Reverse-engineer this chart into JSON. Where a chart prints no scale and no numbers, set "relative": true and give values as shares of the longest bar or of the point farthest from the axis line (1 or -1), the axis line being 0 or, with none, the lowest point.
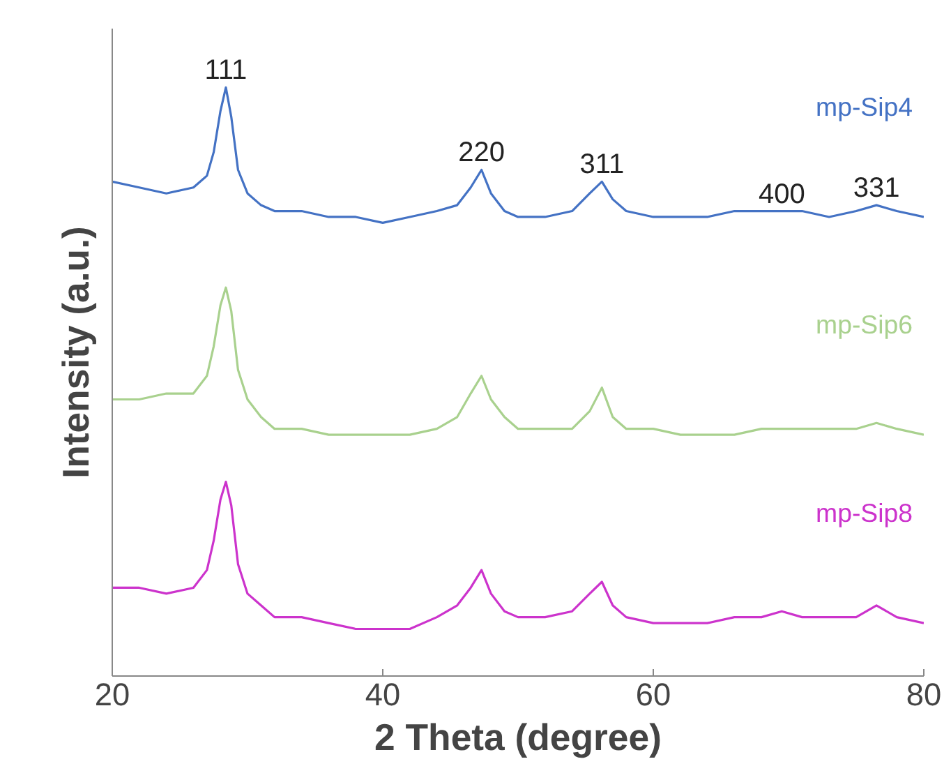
{
  "chart_data": {
    "type": "line",
    "relative": true,
    "xlabel": "2 Theta (degree)",
    "ylabel": "Intensity (a.u.)",
    "x": [
      20,
      22,
      24,
      26,
      27,
      27.5,
      28,
      28.4,
      28.8,
      29.3,
      30,
      31,
      32,
      34,
      36,
      38,
      40,
      42,
      44,
      45.5,
      46.5,
      47.3,
      48,
      49,
      50,
      52,
      54,
      55.3,
      56.2,
      57,
      58,
      60,
      62,
      64,
      66,
      68,
      69.5,
      71,
      73,
      75,
      76.5,
      78,
      80
    ],
    "xlim": [
      20,
      80
    ],
    "xticks": [
      20,
      40,
      60,
      80
    ],
    "grid": false,
    "legend": false,
    "marker": "none",
    "line_style": "solid",
    "series": [
      {
        "name": "mp-Sip4",
        "color": "#4472c4",
        "values": [
          0.84,
          0.83,
          0.82,
          0.83,
          0.85,
          0.89,
          0.96,
          1.0,
          0.95,
          0.86,
          0.82,
          0.8,
          0.79,
          0.79,
          0.78,
          0.78,
          0.77,
          0.78,
          0.79,
          0.8,
          0.83,
          0.86,
          0.82,
          0.79,
          0.78,
          0.78,
          0.79,
          0.82,
          0.84,
          0.81,
          0.79,
          0.78,
          0.78,
          0.78,
          0.79,
          0.79,
          0.79,
          0.79,
          0.78,
          0.79,
          0.8,
          0.79,
          0.78
        ]
      },
      {
        "name": "mp-Sip6",
        "color": "#a9d18e",
        "values": [
          0.47,
          0.47,
          0.48,
          0.48,
          0.51,
          0.56,
          0.63,
          0.66,
          0.62,
          0.52,
          0.47,
          0.44,
          0.42,
          0.42,
          0.41,
          0.41,
          0.41,
          0.41,
          0.42,
          0.44,
          0.48,
          0.51,
          0.47,
          0.44,
          0.42,
          0.42,
          0.42,
          0.45,
          0.49,
          0.44,
          0.42,
          0.42,
          0.41,
          0.41,
          0.41,
          0.42,
          0.42,
          0.42,
          0.42,
          0.42,
          0.43,
          0.42,
          0.41
        ]
      },
      {
        "name": "mp-Sip8",
        "color": "#cc33cc",
        "values": [
          0.15,
          0.15,
          0.14,
          0.15,
          0.18,
          0.23,
          0.3,
          0.33,
          0.29,
          0.19,
          0.14,
          0.12,
          0.1,
          0.1,
          0.09,
          0.08,
          0.08,
          0.08,
          0.1,
          0.12,
          0.15,
          0.18,
          0.14,
          0.11,
          0.1,
          0.1,
          0.11,
          0.14,
          0.16,
          0.12,
          0.1,
          0.09,
          0.09,
          0.09,
          0.1,
          0.1,
          0.11,
          0.1,
          0.1,
          0.1,
          0.12,
          0.1,
          0.09
        ]
      }
    ],
    "annotations": [
      {
        "text": "111",
        "x": 28.4,
        "y": 1.0
      },
      {
        "text": "220",
        "x": 47.3,
        "y": 0.86
      },
      {
        "text": "311",
        "x": 56.2,
        "y": 0.84
      },
      {
        "text": "400",
        "x": 69.5,
        "y": 0.79
      },
      {
        "text": "331",
        "x": 76.5,
        "y": 0.8
      }
    ]
  }
}
